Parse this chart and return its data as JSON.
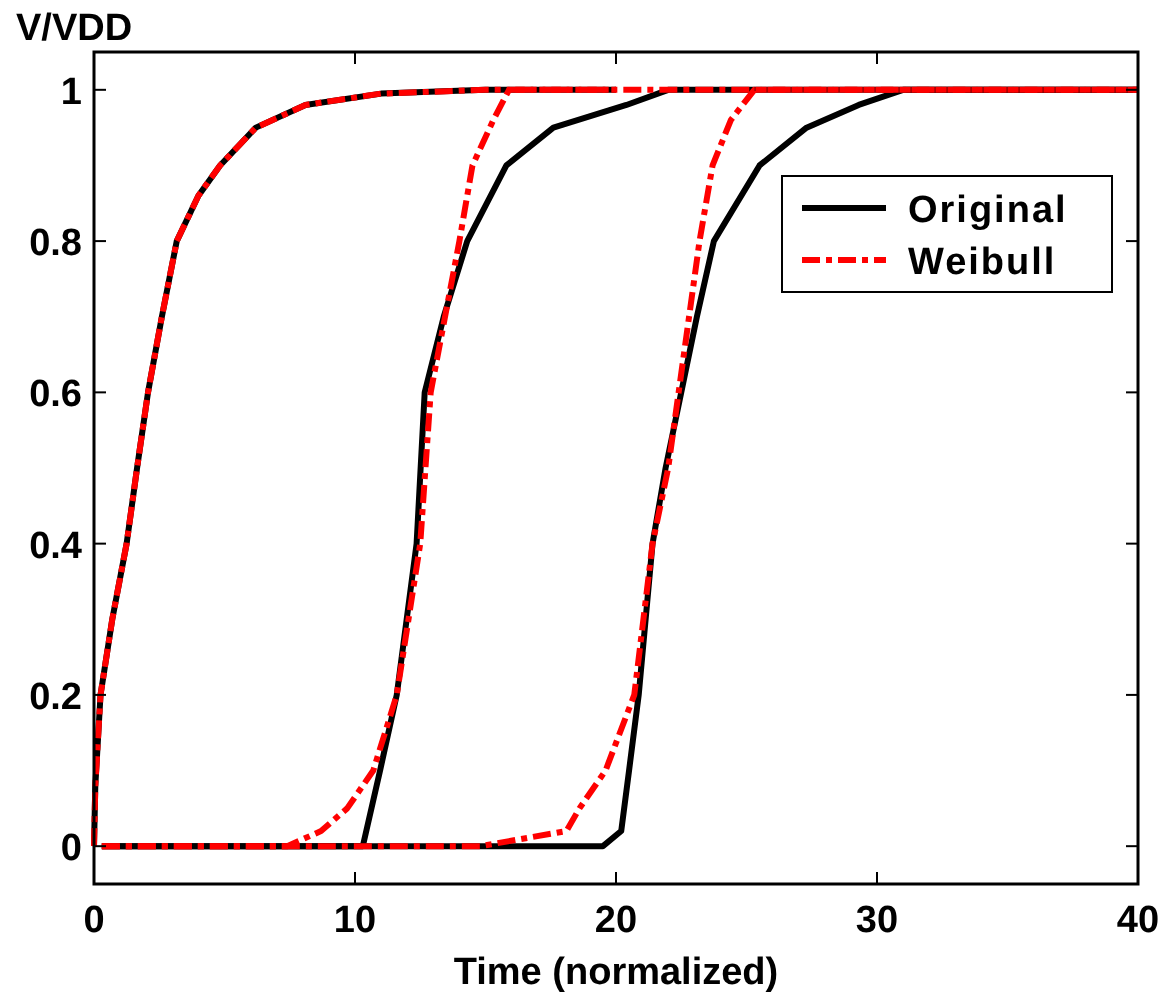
{
  "chart_data": {
    "type": "line",
    "xlabel": "Time (normalized)",
    "ylabel": "V/VDD",
    "xlim": [
      0,
      40
    ],
    "ylim": [
      -0.05,
      1.05
    ],
    "xticks": [
      0,
      10,
      20,
      30,
      40
    ],
    "yticks": [
      0,
      0.2,
      0.4,
      0.6,
      0.8,
      1
    ],
    "grid": false,
    "legend": "top right",
    "marker": "none",
    "series": [
      {
        "name": "Original",
        "color": "#000000",
        "line_style": "solid",
        "x": [
          0,
          0.05,
          0.25,
          0.7,
          1.25,
          1.65,
          2.07,
          2.6,
          3.17,
          4,
          4.83,
          6.2,
          8.1,
          11,
          15,
          20
        ],
        "values": [
          0,
          0.08,
          0.2,
          0.3,
          0.4,
          0.5,
          0.6,
          0.7,
          0.8,
          0.86,
          0.9,
          0.95,
          0.98,
          0.995,
          1,
          1
        ]
      },
      {
        "color": "#000000",
        "line_style": "solid",
        "x": [
          0.3,
          10.3,
          10.96,
          11.6,
          12.36,
          12.67,
          13.4,
          14.3,
          15.8,
          17.6,
          20.4,
          22,
          40
        ],
        "values": [
          0,
          0,
          0.1,
          0.2,
          0.4,
          0.6,
          0.7,
          0.8,
          0.9,
          0.95,
          0.98,
          1,
          1
        ]
      },
      {
        "color": "#000000",
        "line_style": "solid",
        "x": [
          0.3,
          19.5,
          20.2,
          20.5,
          20.87,
          21.4,
          21.9,
          22.5,
          23.1,
          23.75,
          25.5,
          27.3,
          29.3,
          31,
          40
        ],
        "values": [
          0,
          0,
          0.02,
          0.1,
          0.2,
          0.4,
          0.5,
          0.6,
          0.7,
          0.8,
          0.9,
          0.95,
          0.98,
          1,
          1
        ]
      },
      {
        "name": "Weibull",
        "color": "#ff0000",
        "line_style": "dashed",
        "x": [
          0,
          0.05,
          0.25,
          0.7,
          1.25,
          1.65,
          2.07,
          2.6,
          3.17,
          4,
          4.83,
          6.2,
          8.1,
          11,
          15,
          20
        ],
        "values": [
          0,
          0.08,
          0.2,
          0.3,
          0.4,
          0.5,
          0.6,
          0.7,
          0.8,
          0.86,
          0.9,
          0.95,
          0.98,
          0.995,
          1,
          1
        ]
      },
      {
        "color": "#ff0000",
        "line_style": "dashed",
        "x": [
          0.3,
          7.4,
          8.7,
          9.7,
          10.7,
          11.6,
          12.5,
          12.9,
          14,
          14.5,
          15.3,
          15.9,
          40
        ],
        "values": [
          0,
          0,
          0.02,
          0.05,
          0.1,
          0.2,
          0.4,
          0.6,
          0.8,
          0.9,
          0.96,
          1,
          1
        ]
      },
      {
        "color": "#ff0000",
        "line_style": "dashed",
        "x": [
          0.3,
          14.8,
          18.1,
          18.6,
          19.6,
          20.7,
          21.05,
          21.4,
          22,
          22.4,
          22.8,
          23.2,
          23.7,
          24.4,
          25.3,
          40
        ],
        "values": [
          0,
          0,
          0.02,
          0.05,
          0.1,
          0.2,
          0.3,
          0.4,
          0.5,
          0.6,
          0.7,
          0.8,
          0.9,
          0.96,
          1,
          1
        ]
      }
    ]
  }
}
